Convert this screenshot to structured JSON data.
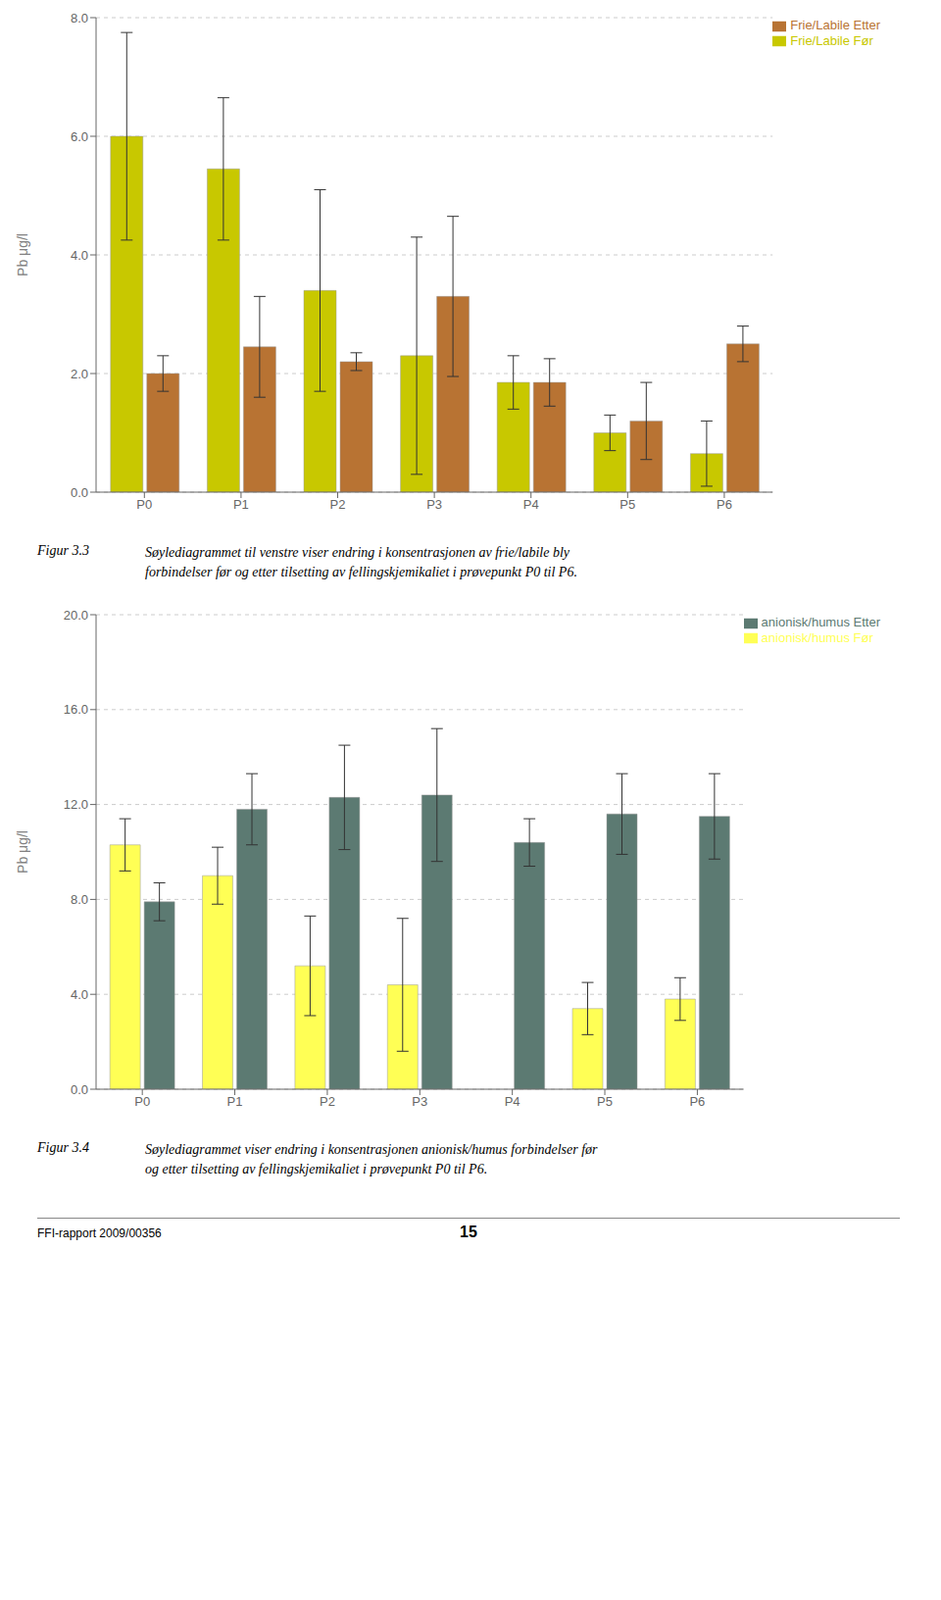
{
  "chart_data": [
    {
      "type": "bar",
      "categories": [
        "P0",
        "P1",
        "P2",
        "P3",
        "P4",
        "P5",
        "P6"
      ],
      "series": [
        {
          "name": "Frie/Labile Før",
          "color": "#C8C800",
          "values": [
            6.0,
            5.45,
            3.4,
            2.3,
            1.85,
            1.0,
            0.65
          ],
          "errors": [
            1.75,
            1.2,
            1.7,
            2.0,
            0.45,
            0.3,
            0.55
          ]
        },
        {
          "name": "Frie/Labile Etter",
          "color": "#B87333",
          "values": [
            2.0,
            2.45,
            2.2,
            3.3,
            1.85,
            1.2,
            2.5
          ],
          "errors": [
            0.3,
            0.85,
            0.15,
            1.35,
            0.4,
            0.65,
            0.3
          ]
        }
      ],
      "ylabel": "Pb μg/l",
      "ylim": [
        0.0,
        8.0
      ],
      "yticks": [
        {
          "value": 0,
          "label": "0.0"
        },
        {
          "value": 2,
          "label": "2.0"
        },
        {
          "value": 4,
          "label": "4.0"
        },
        {
          "value": 6,
          "label": "6.0"
        },
        {
          "value": 8,
          "label": "8.0"
        }
      ],
      "grid": true,
      "legend": "upper right",
      "annotations": [
        "Figur 3.3",
        "Søylediagrammet til venstre viser endring i konsentrasjonen av frie/labile bly\nforbindelser før og etter tilsetting av fellingskjemikaliet i prøvepunkt P0 til P6."
      ]
    },
    {
      "type": "bar",
      "categories": [
        "P0",
        "P1",
        "P2",
        "P3",
        "P4",
        "P5",
        "P6"
      ],
      "series": [
        {
          "name": "anionisk/humus Før",
          "color": "#FFFF55",
          "values": [
            10.3,
            9.0,
            5.2,
            4.4,
            0.0,
            3.4,
            3.8
          ],
          "errors": [
            1.1,
            1.2,
            2.1,
            2.8,
            0.0,
            1.1,
            0.9
          ]
        },
        {
          "name": "anionisk/humus Etter",
          "color": "#5C7A72",
          "values": [
            7.9,
            11.8,
            12.3,
            12.4,
            10.4,
            11.6,
            11.5
          ],
          "errors": [
            0.8,
            1.5,
            2.2,
            2.8,
            1.0,
            1.7,
            1.8
          ]
        }
      ],
      "ylabel": "Pb μg/l",
      "ylim": [
        0.0,
        20.0
      ],
      "yticks": [
        {
          "value": 0,
          "label": "0.0"
        },
        {
          "value": 4,
          "label": "4.0"
        },
        {
          "value": 8,
          "label": "8.0"
        },
        {
          "value": 12,
          "label": "12.0"
        },
        {
          "value": 16,
          "label": "16.0"
        },
        {
          "value": 20,
          "label": "20.0"
        }
      ],
      "grid": true,
      "legend": "upper right",
      "annotations": [
        "Figur 3.4",
        "Søylediagrammet viser endring i konsentrasjonen anionisk/humus forbindelser før\nog etter tilsetting av fellingskjemikaliet i prøvepunkt P0 til P6."
      ]
    }
  ],
  "annotations": [
    "FFI-rapport 2009/00356",
    "15"
  ]
}
